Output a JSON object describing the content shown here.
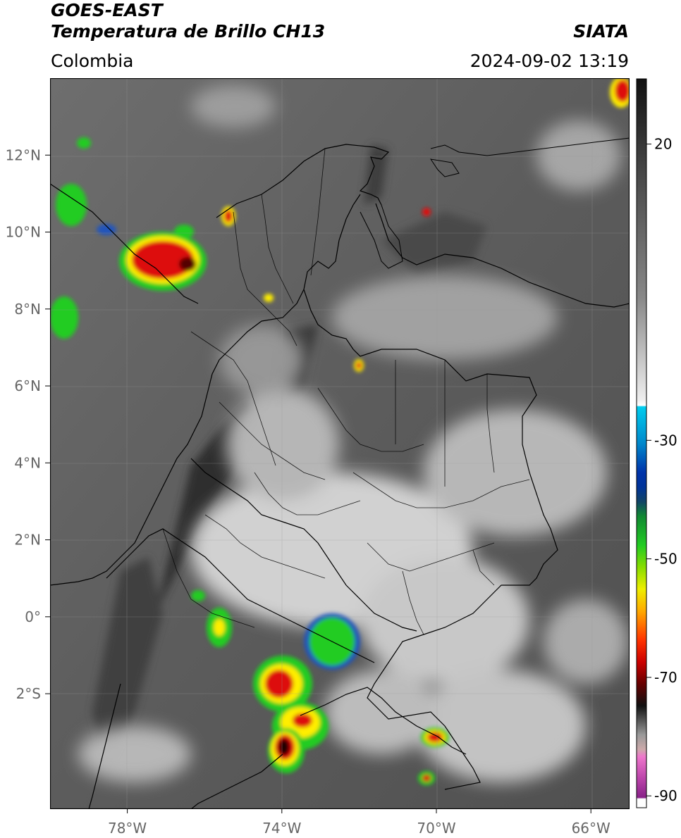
{
  "header": {
    "title_line1": "GOES-EAST",
    "title_line2": "Temperatura de Brillo CH13",
    "brand": "SIATA",
    "region": "Colombia",
    "datetime": "2024-09-02 13:19"
  },
  "map": {
    "lat_ticks": [
      {
        "value": 12,
        "label": "12°N"
      },
      {
        "value": 10,
        "label": "10°N"
      },
      {
        "value": 8,
        "label": "8°N"
      },
      {
        "value": 6,
        "label": "6°N"
      },
      {
        "value": 4,
        "label": "4°N"
      },
      {
        "value": 2,
        "label": "2°N"
      },
      {
        "value": 0,
        "label": "0°"
      },
      {
        "value": -2,
        "label": "2°S"
      }
    ],
    "lon_ticks": [
      {
        "value": -78,
        "label": "78°W"
      },
      {
        "value": -74,
        "label": "74°W"
      },
      {
        "value": -70,
        "label": "70°W"
      },
      {
        "value": -66,
        "label": "66°W"
      }
    ],
    "lon_range": [
      -80,
      -65
    ],
    "lat_range": [
      -5,
      14
    ],
    "grid": true
  },
  "colorbar": {
    "range": [
      -92,
      31
    ],
    "ticks": [
      {
        "value": 20,
        "label": "20"
      },
      {
        "value": -30,
        "label": "-30"
      },
      {
        "value": -50,
        "label": "-50"
      },
      {
        "value": -70,
        "label": "-70"
      },
      {
        "value": -90,
        "label": "-90"
      }
    ]
  },
  "colors": {
    "land_gray": "#5a5a5a",
    "cloud_light": "#d6d6d6",
    "storm_green": "#22cc22",
    "storm_yellow": "#ffee00",
    "storm_red": "#dd1111",
    "storm_core": "#220000",
    "cyan": "#00ccee",
    "blue": "#2244aa",
    "magenta": "#dd55cc"
  }
}
